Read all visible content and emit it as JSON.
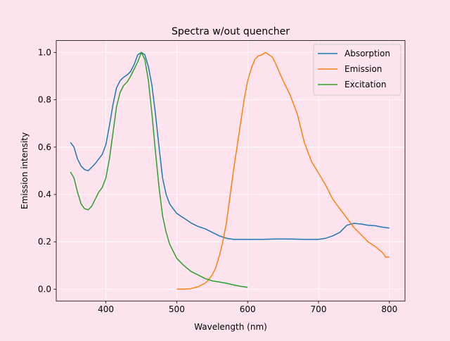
{
  "chart_data": {
    "type": "line",
    "title": "Spectra w/out quencher",
    "xlabel": "Wavelength (nm)",
    "ylabel": "Emission intensity",
    "xlim": [
      330,
      822
    ],
    "ylim": [
      -0.05,
      1.05
    ],
    "xticks": [
      400,
      500,
      600,
      700,
      800
    ],
    "yticks": [
      0.0,
      0.2,
      0.4,
      0.6,
      0.8,
      1.0
    ],
    "xtick_labels": [
      "400",
      "500",
      "600",
      "700",
      "800"
    ],
    "ytick_labels": [
      "0.0",
      "0.2",
      "0.4",
      "0.6",
      "0.8",
      "1.0"
    ],
    "grid": true,
    "legend_position": "upper right",
    "series": [
      {
        "name": "Absorption",
        "color": "#1f77b4",
        "x": [
          350,
          355,
          360,
          365,
          370,
          375,
          380,
          385,
          390,
          395,
          400,
          405,
          410,
          415,
          420,
          425,
          430,
          435,
          440,
          445,
          450,
          455,
          460,
          465,
          470,
          475,
          480,
          485,
          490,
          495,
          500,
          510,
          520,
          530,
          540,
          550,
          560,
          570,
          580,
          590,
          600,
          620,
          640,
          660,
          680,
          700,
          710,
          720,
          730,
          740,
          750,
          760,
          770,
          780,
          790,
          800
        ],
        "y": [
          0.62,
          0.6,
          0.55,
          0.52,
          0.505,
          0.5,
          0.515,
          0.53,
          0.55,
          0.57,
          0.61,
          0.69,
          0.78,
          0.85,
          0.88,
          0.895,
          0.905,
          0.92,
          0.95,
          0.99,
          1.0,
          0.99,
          0.94,
          0.86,
          0.74,
          0.6,
          0.47,
          0.4,
          0.36,
          0.34,
          0.32,
          0.3,
          0.28,
          0.265,
          0.255,
          0.24,
          0.225,
          0.215,
          0.21,
          0.21,
          0.21,
          0.21,
          0.212,
          0.212,
          0.21,
          0.21,
          0.215,
          0.225,
          0.24,
          0.27,
          0.278,
          0.275,
          0.27,
          0.268,
          0.262,
          0.258
        ]
      },
      {
        "name": "Emission",
        "color": "#ff7f0e",
        "x": [
          500,
          510,
          520,
          530,
          540,
          545,
          550,
          555,
          560,
          565,
          570,
          575,
          580,
          585,
          590,
          595,
          600,
          605,
          610,
          615,
          620,
          625,
          630,
          635,
          640,
          650,
          660,
          670,
          680,
          690,
          700,
          710,
          720,
          730,
          740,
          750,
          760,
          770,
          780,
          790,
          795,
          800
        ],
        "y": [
          0.0,
          0.0,
          0.002,
          0.01,
          0.025,
          0.04,
          0.06,
          0.09,
          0.14,
          0.2,
          0.28,
          0.39,
          0.5,
          0.6,
          0.7,
          0.8,
          0.88,
          0.93,
          0.97,
          0.985,
          0.99,
          1.0,
          0.99,
          0.98,
          0.95,
          0.88,
          0.82,
          0.74,
          0.62,
          0.54,
          0.49,
          0.44,
          0.38,
          0.34,
          0.3,
          0.26,
          0.23,
          0.2,
          0.18,
          0.155,
          0.135,
          0.135
        ]
      },
      {
        "name": "Excitation",
        "color": "#2ca02c",
        "x": [
          350,
          355,
          360,
          365,
          370,
          375,
          380,
          385,
          390,
          395,
          400,
          405,
          410,
          415,
          420,
          425,
          430,
          435,
          440,
          445,
          450,
          455,
          460,
          465,
          470,
          475,
          480,
          485,
          490,
          495,
          500,
          510,
          520,
          530,
          540,
          550,
          560,
          570,
          580,
          590,
          600
        ],
        "y": [
          0.495,
          0.47,
          0.41,
          0.36,
          0.34,
          0.335,
          0.35,
          0.38,
          0.41,
          0.43,
          0.47,
          0.55,
          0.66,
          0.77,
          0.83,
          0.86,
          0.875,
          0.9,
          0.93,
          0.96,
          1.0,
          0.97,
          0.88,
          0.74,
          0.58,
          0.43,
          0.31,
          0.24,
          0.19,
          0.16,
          0.13,
          0.1,
          0.075,
          0.06,
          0.045,
          0.035,
          0.03,
          0.025,
          0.018,
          0.012,
          0.008
        ]
      }
    ]
  }
}
